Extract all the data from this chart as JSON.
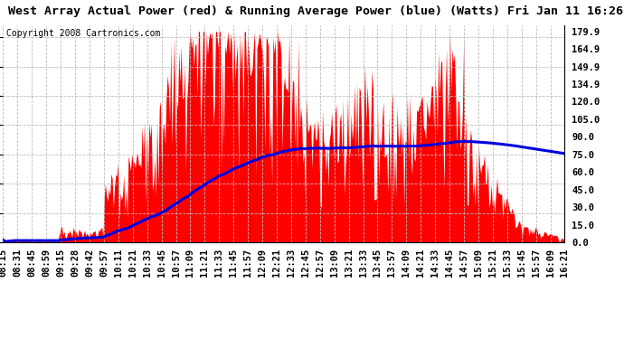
{
  "title": "West Array Actual Power (red) & Running Average Power (blue) (Watts) Fri Jan 11 16:26",
  "copyright": "Copyright 2008 Cartronics.com",
  "ylabel_right_ticks": [
    0.0,
    15.0,
    30.0,
    45.0,
    60.0,
    75.0,
    90.0,
    105.0,
    120.0,
    134.9,
    149.9,
    164.9,
    179.9
  ],
  "ymin": 0.0,
  "ymax": 185.0,
  "background_color": "#ffffff",
  "grid_color": "#bbbbbb",
  "bar_color": "#ff0000",
  "line_color": "#0000dd",
  "x_labels": [
    "08:15",
    "08:31",
    "08:45",
    "08:59",
    "09:15",
    "09:28",
    "09:42",
    "09:57",
    "10:11",
    "10:21",
    "10:33",
    "10:45",
    "10:57",
    "11:09",
    "11:21",
    "11:33",
    "11:45",
    "11:57",
    "12:09",
    "12:21",
    "12:33",
    "12:45",
    "12:57",
    "13:09",
    "13:21",
    "13:33",
    "13:45",
    "13:57",
    "14:09",
    "14:21",
    "14:33",
    "14:45",
    "14:57",
    "15:09",
    "15:21",
    "15:33",
    "15:45",
    "15:57",
    "16:09",
    "16:21"
  ],
  "title_fontsize": 9.5,
  "copyright_fontsize": 7,
  "tick_fontsize": 7.5,
  "line_width": 2.2
}
